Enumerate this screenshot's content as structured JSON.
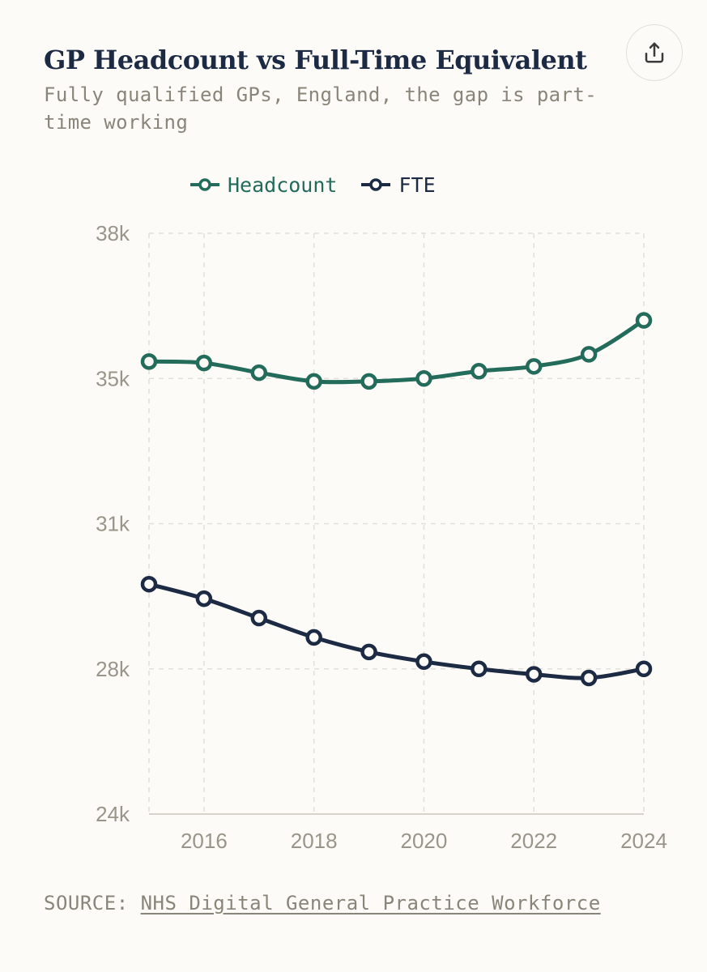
{
  "header": {
    "title": "GP Headcount vs Full-Time Equivalent",
    "subtitle": "Fully qualified GPs, England, the gap is part-time working",
    "share_icon": "share-icon"
  },
  "colors": {
    "headcount": "#236b5a",
    "fte": "#1c2a44",
    "grid": "#e2e0d8",
    "axis_text": "#9a958a"
  },
  "chart_data": {
    "type": "line",
    "title": "GP Headcount vs Full-Time Equivalent",
    "subtitle": "Fully qualified GPs, England, the gap is part-time working",
    "x": [
      2015,
      2016,
      2017,
      2018,
      2019,
      2020,
      2021,
      2022,
      2023,
      2024
    ],
    "x_ticks": [
      2016,
      2018,
      2020,
      2022,
      2024
    ],
    "x_tick_labels": [
      "2016",
      "2018",
      "2020",
      "2022",
      "2024"
    ],
    "y_ticks": [
      24000,
      28000,
      31000,
      35000,
      38000
    ],
    "y_tick_labels": [
      "24k",
      "28k",
      "31k",
      "35k",
      "38k"
    ],
    "xlim": [
      2015,
      2024
    ],
    "ylim": [
      24000,
      38000
    ],
    "grid": true,
    "legend_position": "top",
    "series": [
      {
        "name": "Headcount",
        "color": "#236b5a",
        "values": [
          35350,
          35320,
          35120,
          34920,
          34920,
          35000,
          35150,
          35250,
          35500,
          36200
        ]
      },
      {
        "name": "FTE",
        "color": "#1c2a44",
        "values": [
          29750,
          29450,
          29050,
          28650,
          28350,
          28150,
          28000,
          27850,
          27750,
          28000
        ]
      }
    ]
  },
  "source": {
    "prefix": "SOURCE: ",
    "link_text": "NHS Digital General Practice Workforce"
  }
}
